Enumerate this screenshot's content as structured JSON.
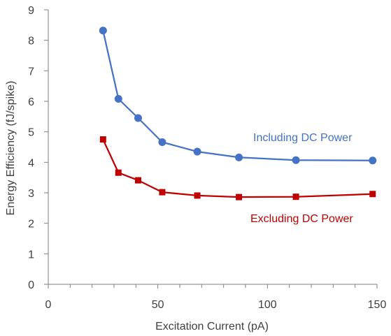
{
  "chart_data": {
    "type": "line",
    "title": "",
    "xlabel": "Excitation Current (pA)",
    "ylabel": "Energy Efficiency (fJ/spike)",
    "xlim": [
      0,
      150
    ],
    "ylim": [
      0,
      9
    ],
    "x_ticks": [
      0,
      50,
      100,
      150
    ],
    "x_tick_labels": [
      "0",
      "50",
      "100",
      "150"
    ],
    "x_minor_ticks": [
      10,
      20,
      30,
      40,
      60,
      70,
      80,
      90,
      110,
      120,
      130,
      140
    ],
    "y_ticks": [
      0,
      1,
      2,
      3,
      4,
      5,
      6,
      7,
      8,
      9
    ],
    "y_tick_labels": [
      "0",
      "1",
      "2",
      "3",
      "4",
      "5",
      "6",
      "7",
      "8",
      "9"
    ],
    "grid": false,
    "legend": "none",
    "series": [
      {
        "name": "Including DC Power",
        "color": "#4472c4",
        "marker": "circle",
        "x": [
          25,
          32,
          41,
          52,
          68,
          87,
          113,
          148
        ],
        "y": [
          8.32,
          6.08,
          5.45,
          4.66,
          4.35,
          4.16,
          4.07,
          4.06
        ]
      },
      {
        "name": "Excluding DC Power",
        "color": "#c00000",
        "marker": "square",
        "x": [
          25,
          32,
          41,
          52,
          68,
          87,
          113,
          148
        ],
        "y": [
          4.75,
          3.66,
          3.41,
          3.02,
          2.91,
          2.86,
          2.87,
          2.96
        ]
      }
    ],
    "annotations": [
      {
        "text": "Including DC Power",
        "series": 0
      },
      {
        "text": "Excluding DC Power",
        "series": 1
      }
    ]
  }
}
